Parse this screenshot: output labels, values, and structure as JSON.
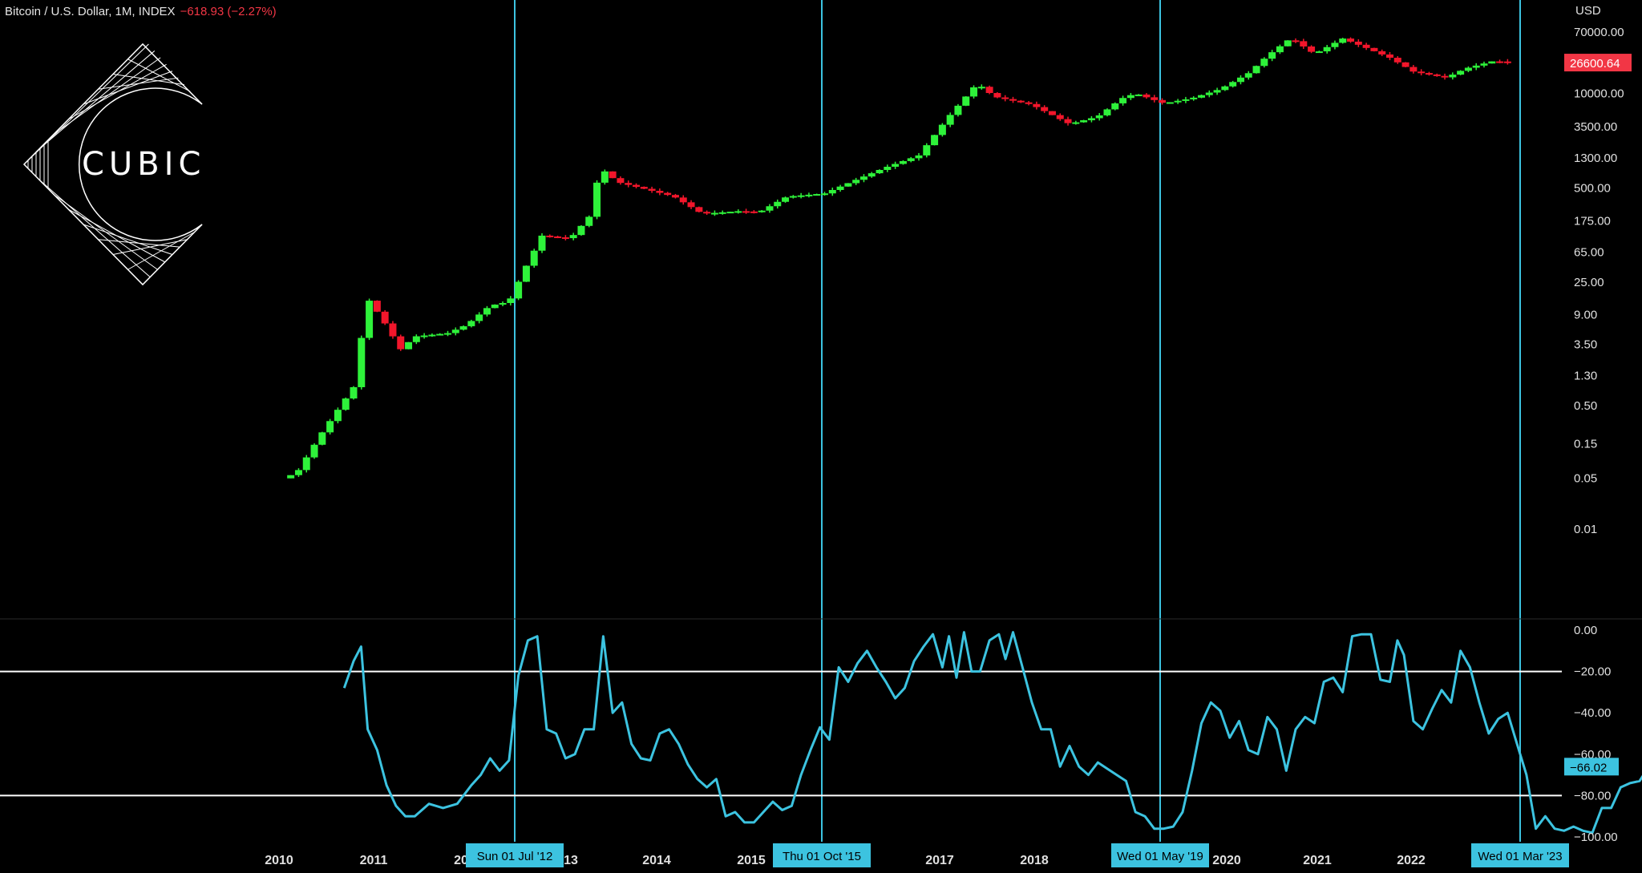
{
  "header": {
    "symbol": "Bitcoin / U.S. Dollar, 1M, INDEX",
    "change": "−618.93 (−2.27%)"
  },
  "logo": {
    "text": "CUBIC"
  },
  "colors": {
    "up": "#2ef23a",
    "down": "#f2162b",
    "accent": "#3cc3e0",
    "price_tag": "#f23645",
    "line": "#3cc3e0"
  },
  "chart_data": [
    {
      "type": "candlestick",
      "scale": "log",
      "ylabel": "USD",
      "yticks": [
        70000,
        10000,
        3500,
        1300,
        500,
        175,
        65,
        25,
        9,
        3.5,
        1.3,
        0.5,
        0.15,
        0.05,
        0.01
      ],
      "ytick_labels": [
        "70000.00",
        "10000.00",
        "3500.00",
        "1300.00",
        "500.00",
        "175.00",
        "65.00",
        "25.00",
        "9.00",
        "3.50",
        "1.30",
        "0.50",
        "0.15",
        "0.05",
        "0.01"
      ],
      "last_price": 26600.64,
      "last_price_label": "26600.64",
      "x_labels": [
        "2010",
        "2011",
        "20",
        "13",
        "2014",
        "2015",
        "2017",
        "2018",
        "2020",
        "2021",
        "2022"
      ],
      "x_label_years": [
        2010.5,
        2011.5,
        2012.2,
        2013.2,
        2014.0,
        2015.0,
        2017.0,
        2018.0,
        2020.0,
        2021.0,
        2022.0
      ],
      "anchors": [
        [
          2010.55,
          0.05
        ],
        [
          2010.7,
          0.06
        ],
        [
          2010.95,
          0.2
        ],
        [
          2011.3,
          0.9
        ],
        [
          2011.45,
          15
        ],
        [
          2011.6,
          8
        ],
        [
          2011.8,
          3
        ],
        [
          2011.95,
          4.5
        ],
        [
          2012.3,
          5
        ],
        [
          2012.5,
          6.5
        ],
        [
          2012.75,
          12
        ],
        [
          2012.95,
          13.5
        ],
        [
          2013.1,
          35
        ],
        [
          2013.3,
          110
        ],
        [
          2013.6,
          100
        ],
        [
          2013.8,
          200
        ],
        [
          2013.92,
          950
        ],
        [
          2014.1,
          600
        ],
        [
          2014.4,
          480
        ],
        [
          2014.7,
          380
        ],
        [
          2015.0,
          220
        ],
        [
          2015.4,
          240
        ],
        [
          2015.6,
          230
        ],
        [
          2015.9,
          380
        ],
        [
          2016.3,
          420
        ],
        [
          2016.6,
          620
        ],
        [
          2016.95,
          960
        ],
        [
          2017.3,
          1400
        ],
        [
          2017.6,
          4500
        ],
        [
          2017.92,
          13800
        ],
        [
          2018.1,
          9000
        ],
        [
          2018.5,
          7000
        ],
        [
          2018.9,
          3800
        ],
        [
          2019.2,
          4800
        ],
        [
          2019.45,
          8500
        ],
        [
          2019.6,
          10000
        ],
        [
          2019.9,
          7300
        ],
        [
          2020.2,
          8600
        ],
        [
          2020.5,
          11500
        ],
        [
          2020.8,
          19000
        ],
        [
          2021.0,
          33000
        ],
        [
          2021.25,
          58000
        ],
        [
          2021.5,
          35000
        ],
        [
          2021.8,
          57000
        ],
        [
          2022.0,
          45000
        ],
        [
          2022.3,
          31000
        ],
        [
          2022.55,
          20000
        ],
        [
          2022.9,
          16500
        ],
        [
          2023.1,
          22000
        ],
        [
          2023.4,
          28000
        ],
        [
          2023.6,
          26600
        ]
      ]
    },
    {
      "type": "line",
      "ylim": [
        -100,
        0
      ],
      "yticks": [
        0,
        -20,
        -40,
        -60,
        -80,
        -100
      ],
      "ytick_labels": [
        "0.00",
        "−20.00",
        "−40.00",
        "−60.00",
        "−80.00",
        "−100.00"
      ],
      "levels": [
        -20,
        -80
      ],
      "last_value": -66.02,
      "last_value_label": "−66.02",
      "points": [
        [
          2011.2,
          -28
        ],
        [
          2011.3,
          -15
        ],
        [
          2011.38,
          -8
        ],
        [
          2011.45,
          -48
        ],
        [
          2011.55,
          -58
        ],
        [
          2011.65,
          -75
        ],
        [
          2011.75,
          -85
        ],
        [
          2011.85,
          -90
        ],
        [
          2011.95,
          -90
        ],
        [
          2012.1,
          -84
        ],
        [
          2012.25,
          -86
        ],
        [
          2012.4,
          -84
        ],
        [
          2012.55,
          -75
        ],
        [
          2012.65,
          -70
        ],
        [
          2012.75,
          -62
        ],
        [
          2012.85,
          -68
        ],
        [
          2012.95,
          -63
        ],
        [
          2013.05,
          -22
        ],
        [
          2013.15,
          -5
        ],
        [
          2013.25,
          -3
        ],
        [
          2013.35,
          -48
        ],
        [
          2013.45,
          -50
        ],
        [
          2013.55,
          -62
        ],
        [
          2013.65,
          -60
        ],
        [
          2013.75,
          -48
        ],
        [
          2013.85,
          -48
        ],
        [
          2013.95,
          -3
        ],
        [
          2014.05,
          -40
        ],
        [
          2014.15,
          -35
        ],
        [
          2014.25,
          -55
        ],
        [
          2014.35,
          -62
        ],
        [
          2014.45,
          -63
        ],
        [
          2014.55,
          -50
        ],
        [
          2014.65,
          -48
        ],
        [
          2014.75,
          -55
        ],
        [
          2014.85,
          -65
        ],
        [
          2014.95,
          -72
        ],
        [
          2015.05,
          -76
        ],
        [
          2015.15,
          -72
        ],
        [
          2015.25,
          -90
        ],
        [
          2015.35,
          -88
        ],
        [
          2015.45,
          -93
        ],
        [
          2015.55,
          -93
        ],
        [
          2015.65,
          -88
        ],
        [
          2015.75,
          -83
        ],
        [
          2015.85,
          -87
        ],
        [
          2015.95,
          -85
        ],
        [
          2016.05,
          -70
        ],
        [
          2016.15,
          -58
        ],
        [
          2016.25,
          -47
        ],
        [
          2016.35,
          -53
        ],
        [
          2016.45,
          -18
        ],
        [
          2016.55,
          -25
        ],
        [
          2016.65,
          -16
        ],
        [
          2016.75,
          -10
        ],
        [
          2016.85,
          -18
        ],
        [
          2016.95,
          -25
        ],
        [
          2017.05,
          -33
        ],
        [
          2017.15,
          -28
        ],
        [
          2017.25,
          -15
        ],
        [
          2017.35,
          -8
        ],
        [
          2017.45,
          -2
        ],
        [
          2017.55,
          -18
        ],
        [
          2017.62,
          -3
        ],
        [
          2017.7,
          -23
        ],
        [
          2017.78,
          -1
        ],
        [
          2017.86,
          -20
        ],
        [
          2017.95,
          -20
        ],
        [
          2018.05,
          -5
        ],
        [
          2018.15,
          -2
        ],
        [
          2018.22,
          -14
        ],
        [
          2018.3,
          -1
        ],
        [
          2018.4,
          -18
        ],
        [
          2018.5,
          -35
        ],
        [
          2018.6,
          -48
        ],
        [
          2018.7,
          -48
        ],
        [
          2018.8,
          -66
        ],
        [
          2018.9,
          -56
        ],
        [
          2019.0,
          -66
        ],
        [
          2019.1,
          -70
        ],
        [
          2019.2,
          -64
        ],
        [
          2019.3,
          -67
        ],
        [
          2019.4,
          -70
        ],
        [
          2019.5,
          -73
        ],
        [
          2019.6,
          -88
        ],
        [
          2019.7,
          -90
        ],
        [
          2019.8,
          -96
        ],
        [
          2019.9,
          -96
        ],
        [
          2020.0,
          -95
        ],
        [
          2020.1,
          -88
        ],
        [
          2020.2,
          -68
        ],
        [
          2020.3,
          -45
        ],
        [
          2020.4,
          -35
        ],
        [
          2020.5,
          -39
        ],
        [
          2020.6,
          -52
        ],
        [
          2020.7,
          -44
        ],
        [
          2020.8,
          -58
        ],
        [
          2020.9,
          -60
        ],
        [
          2021.0,
          -42
        ],
        [
          2021.1,
          -48
        ],
        [
          2021.2,
          -68
        ],
        [
          2021.3,
          -48
        ],
        [
          2021.4,
          -42
        ],
        [
          2021.5,
          -45
        ],
        [
          2021.6,
          -25
        ],
        [
          2021.7,
          -23
        ],
        [
          2021.8,
          -30
        ],
        [
          2021.9,
          -3
        ],
        [
          2022.0,
          -2
        ],
        [
          2022.1,
          -2
        ],
        [
          2022.2,
          -24
        ],
        [
          2022.3,
          -25
        ],
        [
          2022.38,
          -5
        ],
        [
          2022.45,
          -12
        ],
        [
          2022.55,
          -44
        ],
        [
          2022.65,
          -48
        ],
        [
          2022.75,
          -38
        ],
        [
          2022.85,
          -29
        ],
        [
          2022.95,
          -35
        ],
        [
          2023.05,
          -10
        ],
        [
          2023.15,
          -18
        ],
        [
          2023.25,
          -35
        ],
        [
          2023.35,
          -50
        ],
        [
          2023.45,
          -43
        ],
        [
          2023.55,
          -40
        ],
        [
          2023.65,
          -55
        ],
        [
          2023.75,
          -70
        ],
        [
          2023.85,
          -96
        ],
        [
          2023.95,
          -90
        ],
        [
          2024.05,
          -96
        ],
        [
          2024.15,
          -97
        ],
        [
          2024.25,
          -95
        ],
        [
          2024.35,
          -97
        ],
        [
          2024.45,
          -98
        ],
        [
          2024.55,
          -86
        ],
        [
          2024.65,
          -86
        ],
        [
          2024.75,
          -76
        ],
        [
          2024.85,
          -74
        ],
        [
          2024.95,
          -73
        ],
        [
          2025.05,
          -66
        ]
      ]
    }
  ],
  "vlines": [
    {
      "label": "Sun 01 Jul '12"
    },
    {
      "label": "Thu 01 Oct '15"
    },
    {
      "label": "Wed 01 May '19"
    },
    {
      "label": "Wed 01 Mar '23"
    }
  ]
}
